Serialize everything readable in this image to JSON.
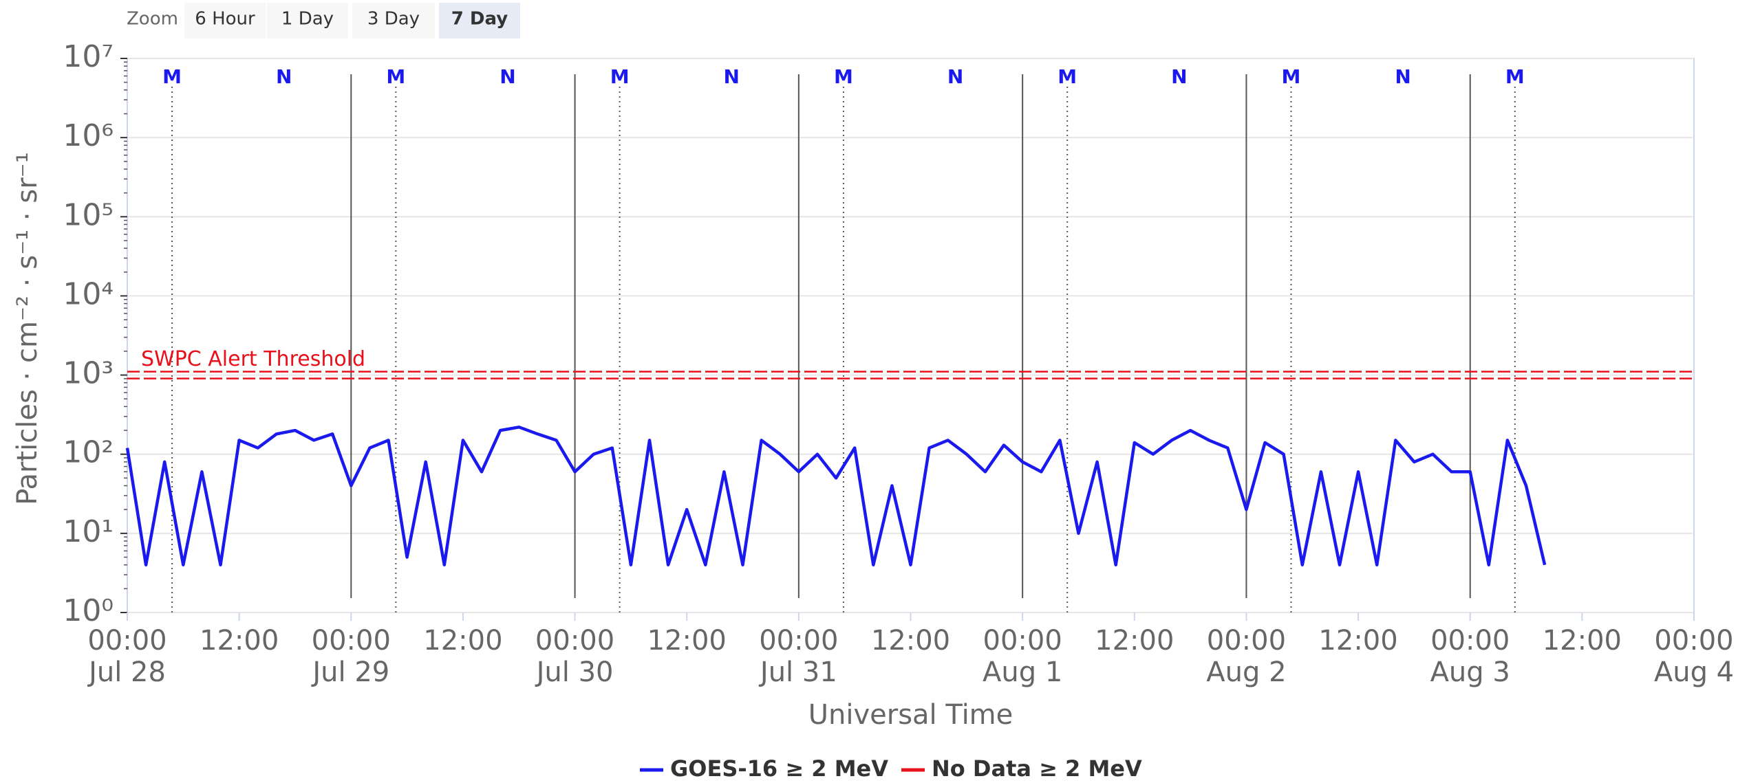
{
  "zoom": {
    "label": "Zoom",
    "buttons": [
      "6 Hour",
      "1 Day",
      "3 Day",
      "7 Day"
    ],
    "selected": 3
  },
  "chart_data": {
    "type": "line",
    "x_label": "Universal Time",
    "y_label": "Particles · cm⁻² · s⁻¹ · sr⁻¹",
    "log_y": true,
    "grid": true,
    "xlim": [
      "Jul 28 00:00",
      "Aug 4 00:00"
    ],
    "xticks": [
      {
        "value": "Jul 28 00:00",
        "label": [
          "00:00",
          "Jul 28"
        ]
      },
      {
        "value": "Jul 28 12:00",
        "label": [
          "12:00"
        ]
      },
      {
        "value": "Jul 29 00:00",
        "label": [
          "00:00",
          "Jul 29"
        ]
      },
      {
        "value": "Jul 29 12:00",
        "label": [
          "12:00"
        ]
      },
      {
        "value": "Jul 30 00:00",
        "label": [
          "00:00",
          "Jul 30"
        ]
      },
      {
        "value": "Jul 30 12:00",
        "label": [
          "12:00"
        ]
      },
      {
        "value": "Jul 31 00:00",
        "label": [
          "00:00",
          "Jul 31"
        ]
      },
      {
        "value": "Jul 31 12:00",
        "label": [
          "12:00"
        ]
      },
      {
        "value": "Aug 1 00:00",
        "label": [
          "00:00",
          "Aug 1"
        ]
      },
      {
        "value": "Aug 1 12:00",
        "label": [
          "12:00"
        ]
      },
      {
        "value": "Aug 2 00:00",
        "label": [
          "00:00",
          "Aug 2"
        ]
      },
      {
        "value": "Aug 2 12:00",
        "label": [
          "12:00"
        ]
      },
      {
        "value": "Aug 3 00:00",
        "label": [
          "00:00",
          "Aug 3"
        ]
      },
      {
        "value": "Aug 3 12:00",
        "label": [
          "12:00"
        ]
      },
      {
        "value": "Aug 4 00:00",
        "label": [
          "00:00",
          "Aug 4"
        ]
      }
    ],
    "day_lines": [
      "Jul 29 00:00",
      "Jul 30 00:00",
      "Jul 31 00:00",
      "Aug 1 00:00",
      "Aug 2 00:00",
      "Aug 3 00:00"
    ],
    "ylim": [
      1,
      10000000
    ],
    "yticks": [
      {
        "value": 1,
        "label": "10⁰"
      },
      {
        "value": 10,
        "label": "10¹"
      },
      {
        "value": 100,
        "label": "10²"
      },
      {
        "value": 1000,
        "label": "10³"
      },
      {
        "value": 10000,
        "label": "10⁴"
      },
      {
        "value": 100000,
        "label": "10⁵"
      },
      {
        "value": 1000000,
        "label": "10⁶"
      },
      {
        "value": 10000000,
        "label": "10⁷"
      }
    ],
    "markers": [
      {
        "label": "M",
        "x": "Jul 28 04:48",
        "line": true
      },
      {
        "label": "N",
        "x": "Jul 28 16:48",
        "line": false
      },
      {
        "label": "M",
        "x": "Jul 29 04:48",
        "line": true
      },
      {
        "label": "N",
        "x": "Jul 29 16:48",
        "line": false
      },
      {
        "label": "M",
        "x": "Jul 30 04:48",
        "line": true
      },
      {
        "label": "N",
        "x": "Jul 30 16:48",
        "line": false
      },
      {
        "label": "M",
        "x": "Jul 31 04:48",
        "line": true
      },
      {
        "label": "N",
        "x": "Jul 31 16:48",
        "line": false
      },
      {
        "label": "M",
        "x": "Aug 1 04:48",
        "line": true
      },
      {
        "label": "N",
        "x": "Aug 1 16:48",
        "line": false
      },
      {
        "label": "M",
        "x": "Aug 2 04:48",
        "line": true
      },
      {
        "label": "N",
        "x": "Aug 2 16:48",
        "line": false
      },
      {
        "label": "M",
        "x": "Aug 3 04:48",
        "line": true
      }
    ],
    "threshold": {
      "label": "SWPC Alert Threshold",
      "value": 1000,
      "color": "#e8101a"
    },
    "x": [
      "Jul 28 00:00",
      "Jul 28 02:00",
      "Jul 28 04:00",
      "Jul 28 06:00",
      "Jul 28 08:00",
      "Jul 28 10:00",
      "Jul 28 12:00",
      "Jul 28 14:00",
      "Jul 28 16:00",
      "Jul 28 18:00",
      "Jul 28 20:00",
      "Jul 28 22:00",
      "Jul 29 00:00",
      "Jul 29 02:00",
      "Jul 29 04:00",
      "Jul 29 06:00",
      "Jul 29 08:00",
      "Jul 29 10:00",
      "Jul 29 12:00",
      "Jul 29 14:00",
      "Jul 29 16:00",
      "Jul 29 18:00",
      "Jul 29 20:00",
      "Jul 29 22:00",
      "Jul 30 00:00",
      "Jul 30 02:00",
      "Jul 30 04:00",
      "Jul 30 06:00",
      "Jul 30 08:00",
      "Jul 30 10:00",
      "Jul 30 12:00",
      "Jul 30 14:00",
      "Jul 30 16:00",
      "Jul 30 18:00",
      "Jul 30 20:00",
      "Jul 30 22:00",
      "Jul 31 00:00",
      "Jul 31 02:00",
      "Jul 31 04:00",
      "Jul 31 06:00",
      "Jul 31 08:00",
      "Jul 31 10:00",
      "Jul 31 12:00",
      "Jul 31 14:00",
      "Jul 31 16:00",
      "Jul 31 18:00",
      "Jul 31 20:00",
      "Jul 31 22:00",
      "Aug 1 00:00",
      "Aug 1 02:00",
      "Aug 1 04:00",
      "Aug 1 06:00",
      "Aug 1 08:00",
      "Aug 1 10:00",
      "Aug 1 12:00",
      "Aug 1 14:00",
      "Aug 1 16:00",
      "Aug 1 18:00",
      "Aug 1 20:00",
      "Aug 1 22:00",
      "Aug 2 00:00",
      "Aug 2 02:00",
      "Aug 2 04:00",
      "Aug 2 06:00",
      "Aug 2 08:00",
      "Aug 2 10:00",
      "Aug 2 12:00",
      "Aug 2 14:00",
      "Aug 2 16:00",
      "Aug 2 18:00",
      "Aug 2 20:00",
      "Aug 2 22:00",
      "Aug 3 00:00",
      "Aug 3 02:00",
      "Aug 3 04:00",
      "Aug 3 06:00",
      "Aug 3 08:00"
    ],
    "series": [
      {
        "name": "GOES-16 ≥ 2 MeV",
        "color": "#1a1aee",
        "values": [
          120,
          4,
          80,
          4,
          60,
          4,
          150,
          120,
          180,
          200,
          150,
          180,
          40,
          120,
          150,
          5,
          80,
          4,
          150,
          60,
          200,
          220,
          180,
          150,
          60,
          100,
          120,
          4,
          150,
          4,
          20,
          4,
          60,
          4,
          150,
          100,
          60,
          100,
          50,
          120,
          4,
          40,
          4,
          120,
          150,
          100,
          60,
          130,
          80,
          60,
          150,
          10,
          80,
          4,
          140,
          100,
          150,
          200,
          150,
          120,
          20,
          140,
          100,
          4,
          60,
          4,
          60,
          4,
          150,
          80,
          100,
          60,
          60,
          4,
          150,
          40,
          4
        ]
      },
      {
        "name": "No Data ≥ 2 MeV",
        "color": "#e8101a",
        "values": [
          null,
          null,
          null,
          null,
          null,
          null,
          null,
          null,
          null,
          null,
          null,
          null,
          null,
          null,
          null,
          null,
          null,
          null,
          null,
          null,
          null,
          null,
          null,
          null,
          null,
          null,
          null,
          null,
          null,
          null,
          null,
          null,
          null,
          null,
          null,
          null,
          null,
          null,
          null,
          null,
          null,
          null,
          null,
          null,
          null,
          null,
          null,
          null,
          null,
          null,
          null,
          null,
          null,
          null,
          null,
          null,
          null,
          null,
          null,
          null,
          null,
          null,
          null,
          null,
          null,
          null,
          null,
          null,
          null,
          null,
          null,
          null,
          null,
          null,
          null,
          null,
          null
        ]
      }
    ]
  }
}
